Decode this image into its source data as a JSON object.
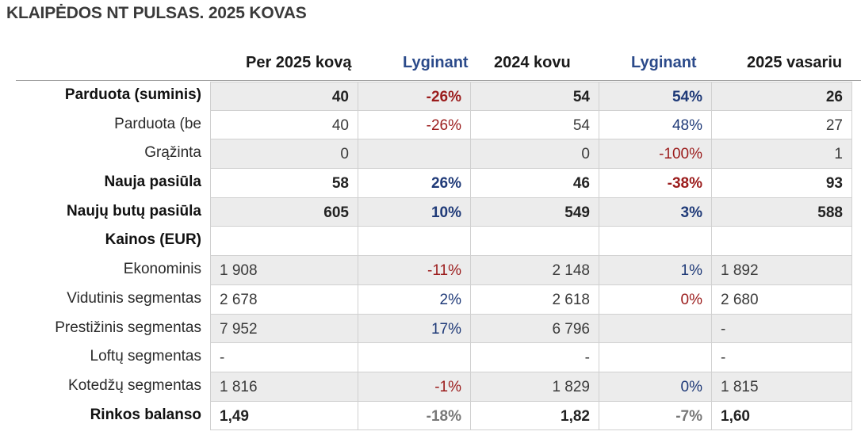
{
  "title": "KLAIPĖDOS NT PULSAS. 2025 KOVAS",
  "headers": [
    "Per 2025 kovą",
    "Lyginant",
    "2024 kovu",
    "Lyginant",
    "2025 vasariu"
  ],
  "rows": [
    {
      "label": "Parduota (suminis)",
      "cells": [
        "40",
        "-26%",
        "54",
        "54%",
        "26"
      ]
    },
    {
      "label": "Parduota (be",
      "cells": [
        "40",
        "-26%",
        "54",
        "48%",
        "27"
      ]
    },
    {
      "label": "Grąžinta",
      "cells": [
        "0",
        "",
        "0",
        "-100%",
        "1"
      ]
    },
    {
      "label": "Nauja pasiūla",
      "cells": [
        "58",
        "26%",
        "46",
        "-38%",
        "93"
      ]
    },
    {
      "label": "Naujų butų pasiūla",
      "cells": [
        "605",
        "10%",
        "549",
        "3%",
        "588"
      ]
    },
    {
      "label": "Kainos (EUR)",
      "cells": [
        "",
        "",
        "",
        "",
        ""
      ]
    },
    {
      "label": "Ekonominis",
      "cells": [
        "1 908",
        "-11%",
        "2 148",
        "1%",
        "1 892"
      ]
    },
    {
      "label": "Vidutinis segmentas",
      "cells": [
        "2 678",
        "2%",
        "2 618",
        "0%",
        "2 680"
      ]
    },
    {
      "label": "Prestižinis segmentas",
      "cells": [
        "7 952",
        "17%",
        "6 796",
        "",
        "-"
      ]
    },
    {
      "label": "Loftų segmentas",
      "cells": [
        "-",
        "",
        "-",
        "",
        "-"
      ]
    },
    {
      "label": "Kotedžų segmentas",
      "cells": [
        "1 816",
        "-1%",
        "1 829",
        "0%",
        "1 815"
      ]
    },
    {
      "label": "Rinkos balanso",
      "cells": [
        "1,49",
        "-18%",
        "1,82",
        "-7%",
        "1,60"
      ]
    }
  ],
  "colors": {
    "negative": "#9b1c1c",
    "positive": "#1f3a78",
    "neutral": "#777777",
    "shade": "#ececec"
  }
}
